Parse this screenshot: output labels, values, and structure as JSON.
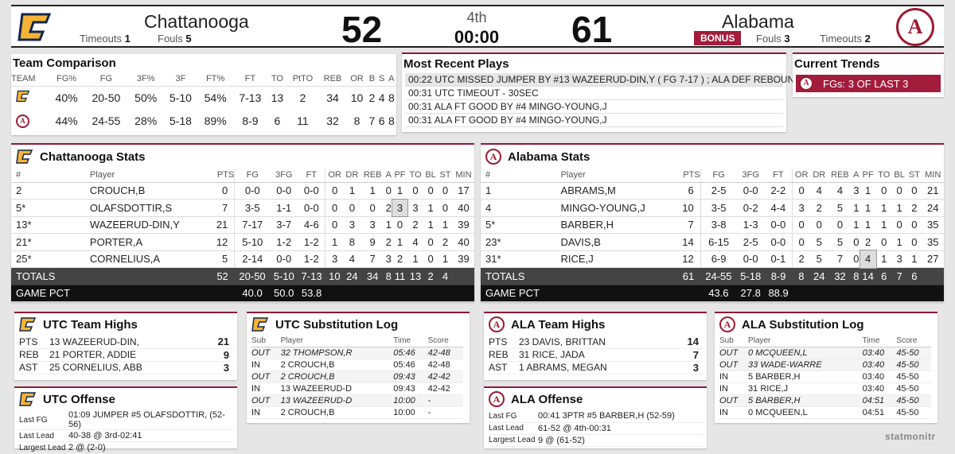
{
  "scoreboard": {
    "home": {
      "name": "Chattanooga",
      "score": "52",
      "timeouts_label": "Timeouts",
      "timeouts": "1",
      "fouls_label": "Fouls",
      "fouls": "5"
    },
    "away": {
      "name": "Alabama",
      "score": "61",
      "bonus": "BONUS",
      "fouls_label": "Fouls",
      "fouls": "3",
      "timeouts_label": "Timeouts",
      "timeouts": "2"
    },
    "period": "4th",
    "clock": "00:00"
  },
  "team_comparison": {
    "title": "Team Comparison",
    "headers": [
      "TEAM",
      "FG%",
      "FG",
      "3F%",
      "3F",
      "FT%",
      "FT",
      "TO",
      "PtTO",
      "REB",
      "OR",
      "B",
      "S",
      "A"
    ],
    "rows": [
      {
        "logo": "utc-logo",
        "cells": [
          "40%",
          "20-50",
          "50%",
          "5-10",
          "54%",
          "7-13",
          "13",
          "2",
          "34",
          "10",
          "2",
          "4",
          "8"
        ]
      },
      {
        "logo": "alabama-logo",
        "cells": [
          "44%",
          "24-55",
          "28%",
          "5-18",
          "89%",
          "8-9",
          "6",
          "11",
          "32",
          "8",
          "7",
          "6",
          "8"
        ]
      }
    ]
  },
  "recent_plays": {
    "title": "Most Recent Plays",
    "items": [
      "00:22 UTC MISSED JUMPER BY #13 WAZEERUD-DIN,Y ( FG 7-17 ) ; ALA DEF REBOUND",
      "00:31 UTC TIMEOUT - 30SEC",
      "00:31 ALA FT GOOD BY #4 MINGO-YOUNG,J",
      "00:31 ALA FT GOOD BY #4 MINGO-YOUNG,J"
    ]
  },
  "trends": {
    "title": "Current Trends",
    "text": "FGs: 3 OF LAST 3"
  },
  "utc_stats": {
    "title": "Chattanooga Stats",
    "headers": [
      "#",
      "Player",
      "PTS",
      "FG",
      "3FG",
      "FT",
      "OR",
      "DR",
      "REB",
      "A",
      "PF",
      "TO",
      "BL",
      "ST",
      "MIN"
    ],
    "rows": [
      [
        "2",
        "CROUCH,B",
        "0",
        "0-0",
        "0-0",
        "0-0",
        "0",
        "1",
        "1",
        "0",
        "1",
        "0",
        "0",
        "0",
        "17"
      ],
      [
        "5*",
        "OLAFSDOTTIR,S",
        "7",
        "3-5",
        "1-1",
        "0-0",
        "0",
        "0",
        "0",
        "2",
        "3",
        "3",
        "1",
        "0",
        "40"
      ],
      [
        "13*",
        "WAZEERUD-DIN,Y",
        "21",
        "7-17",
        "3-7",
        "4-6",
        "0",
        "3",
        "3",
        "1",
        "0",
        "2",
        "1",
        "1",
        "39"
      ],
      [
        "21*",
        "PORTER,A",
        "12",
        "5-10",
        "1-2",
        "1-2",
        "1",
        "8",
        "9",
        "2",
        "1",
        "4",
        "0",
        "2",
        "40"
      ],
      [
        "25*",
        "CORNELIUS,A",
        "5",
        "2-14",
        "0-0",
        "1-2",
        "3",
        "4",
        "7",
        "3",
        "2",
        "1",
        "0",
        "1",
        "39"
      ]
    ],
    "totals": [
      "TOTALS",
      "",
      "52",
      "20-50",
      "5-10",
      "7-13",
      "10",
      "24",
      "34",
      "8",
      "11",
      "13",
      "2",
      "4",
      ""
    ],
    "pct": [
      "GAME PCT",
      "",
      "",
      "40.0",
      "50.0",
      "53.8"
    ]
  },
  "ala_stats": {
    "title": "Alabama Stats",
    "headers": [
      "#",
      "Player",
      "PTS",
      "FG",
      "3FG",
      "FT",
      "OR",
      "DR",
      "REB",
      "A",
      "PF",
      "TO",
      "BL",
      "ST",
      "MIN"
    ],
    "rows": [
      [
        "1",
        "ABRAMS,M",
        "6",
        "2-5",
        "0-0",
        "2-2",
        "0",
        "4",
        "4",
        "3",
        "1",
        "0",
        "0",
        "0",
        "21"
      ],
      [
        "4",
        "MINGO-YOUNG,J",
        "10",
        "3-5",
        "0-2",
        "4-4",
        "3",
        "2",
        "5",
        "1",
        "1",
        "1",
        "1",
        "2",
        "24"
      ],
      [
        "5*",
        "BARBER,H",
        "7",
        "3-8",
        "1-3",
        "0-0",
        "0",
        "0",
        "0",
        "1",
        "1",
        "1",
        "0",
        "0",
        "35"
      ],
      [
        "23*",
        "DAVIS,B",
        "14",
        "6-15",
        "2-5",
        "0-0",
        "0",
        "5",
        "5",
        "0",
        "2",
        "0",
        "1",
        "0",
        "35"
      ],
      [
        "31*",
        "RICE,J",
        "12",
        "6-9",
        "0-0",
        "0-1",
        "2",
        "5",
        "7",
        "0",
        "4",
        "1",
        "3",
        "1",
        "27"
      ]
    ],
    "totals": [
      "TOTALS",
      "",
      "61",
      "24-55",
      "5-18",
      "8-9",
      "8",
      "24",
      "32",
      "8",
      "14",
      "6",
      "7",
      "6",
      ""
    ],
    "pct": [
      "GAME PCT",
      "",
      "",
      "43.6",
      "27.8",
      "88.9"
    ]
  },
  "utc_highs": {
    "title": "UTC Team Highs",
    "rows": [
      [
        "PTS",
        "13 WAZEERUD-DIN,",
        "21"
      ],
      [
        "REB",
        "21 PORTER, ADDIE",
        "9"
      ],
      [
        "AST",
        "25 CORNELIUS, ABB",
        "3"
      ]
    ]
  },
  "ala_highs": {
    "title": "ALA Team Highs",
    "rows": [
      [
        "PTS",
        "23 DAVIS, BRITTAN",
        "14"
      ],
      [
        "REB",
        "31 RICE, JADA",
        "7"
      ],
      [
        "AST",
        "1 ABRAMS, MEGAN",
        "3"
      ]
    ]
  },
  "utc_subs": {
    "title": "UTC Substitution Log",
    "headers": [
      "Sub",
      "Player",
      "Time",
      "Score"
    ],
    "rows": [
      [
        "OUT",
        "32 THOMPSON,R",
        "05:46",
        "42-48"
      ],
      [
        "IN",
        "2 CROUCH,B",
        "05:46",
        "42-48"
      ],
      [
        "OUT",
        "2 CROUCH,B",
        "09:43",
        "42-42"
      ],
      [
        "IN",
        "13 WAZEERUD-D",
        "09:43",
        "42-42"
      ],
      [
        "OUT",
        "13 WAZEERUD-D",
        "10:00",
        "-"
      ],
      [
        "IN",
        "2 CROUCH,B",
        "10:00",
        "-"
      ]
    ]
  },
  "ala_subs": {
    "title": "ALA Substitution Log",
    "headers": [
      "Sub",
      "Player",
      "Time",
      "Score"
    ],
    "rows": [
      [
        "OUT",
        "0 MCQUEEN,L",
        "03:40",
        "45-50"
      ],
      [
        "OUT",
        "33 WADE-WARRE",
        "03:40",
        "45-50"
      ],
      [
        "IN",
        "5 BARBER,H",
        "03:40",
        "45-50"
      ],
      [
        "IN",
        "31 RICE,J",
        "03:40",
        "45-50"
      ],
      [
        "OUT",
        "5 BARBER,H",
        "04:51",
        "45-50"
      ],
      [
        "IN",
        "0 MCQUEEN,L",
        "04:51",
        "45-50"
      ]
    ]
  },
  "utc_offense": {
    "title": "UTC Offense",
    "rows": [
      [
        "Last FG",
        "01:09 JUMPER #5 OLAFSDOTTIR, (52-56)"
      ],
      [
        "Last Lead",
        "40-38 @ 3rd-02:41"
      ],
      [
        "Largest Lead",
        "2 @ (2-0)"
      ]
    ]
  },
  "ala_offense": {
    "title": "ALA Offense",
    "rows": [
      [
        "Last FG",
        "00:41 3PTR #5 BARBER,H (52-59)"
      ],
      [
        "Last Lead",
        "61-52 @ 4th-00:31"
      ],
      [
        "Largest Lead",
        "9 @ (61-52)"
      ]
    ]
  },
  "footer_logo": "statmonitr",
  "colors": {
    "utc_gold": "#f5b335",
    "utc_navy": "#12284b",
    "bama_crimson": "#9e1b32",
    "bonus_bg": "#a31c3b"
  }
}
